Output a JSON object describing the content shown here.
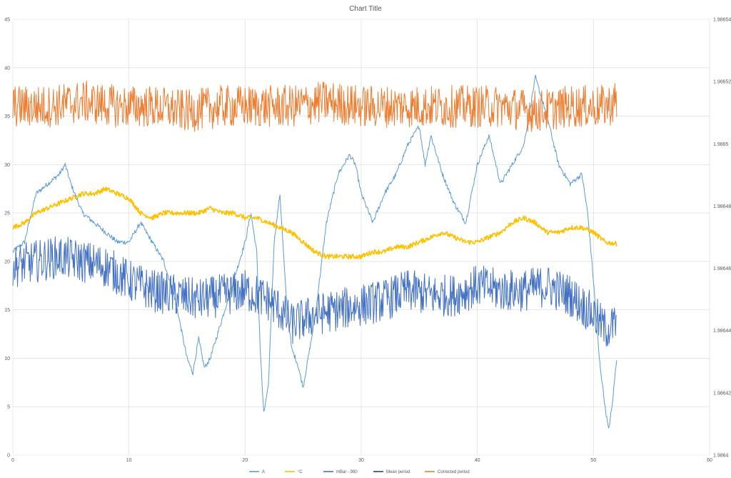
{
  "chart_data": {
    "type": "line",
    "title": "Chart Title",
    "xlabel": "",
    "ylabel": "",
    "y2label": "",
    "xlim": [
      0,
      60
    ],
    "ylim": [
      0,
      45
    ],
    "y2lim": [
      1.9864,
      1.98654
    ],
    "x_ticks": [
      0,
      10,
      20,
      30,
      40,
      50,
      60
    ],
    "y_ticks": [
      0,
      5,
      10,
      15,
      20,
      25,
      30,
      35,
      40,
      45
    ],
    "y2_tick_labels": [
      "1.9864",
      "1.98642",
      "1.98644",
      "1.98646",
      "1.98648",
      "1.9865",
      "1.98652",
      "1.98654"
    ],
    "y2_tick_values": [
      1.9864,
      1.98642,
      1.98644,
      1.98646,
      1.98648,
      1.9865,
      1.98652,
      1.98654
    ],
    "grid": true,
    "legend_position": "bottom",
    "series": [
      {
        "name": "A",
        "axis": "left",
        "color": "#5b9bd5",
        "noise": 0.25,
        "x": [
          0,
          1,
          2,
          3,
          4,
          4.5,
          5,
          6,
          7,
          8,
          9,
          10,
          11,
          12,
          13,
          14,
          15,
          15.5,
          16,
          16.5,
          17,
          18,
          19,
          20,
          20.5,
          21,
          21.3,
          21.6,
          22,
          22.5,
          23,
          23.5,
          24,
          24.5,
          25,
          26,
          27,
          28,
          29,
          29.5,
          30,
          31,
          32,
          33,
          34,
          35,
          35.5,
          36,
          37,
          38,
          39,
          40,
          41,
          42,
          43,
          44,
          45,
          46,
          47,
          48,
          49,
          49.5,
          50,
          50.5,
          51,
          51.3,
          51.6,
          52
        ],
        "y": [
          21,
          22,
          27,
          28,
          29,
          30,
          28,
          25,
          24,
          23,
          22,
          22,
          24,
          22,
          20,
          16,
          10,
          8.5,
          12,
          9,
          10,
          14,
          18,
          22,
          25,
          21,
          11,
          4.3,
          7,
          22,
          27,
          17,
          11,
          9.5,
          7,
          14,
          24,
          29,
          31,
          30,
          27,
          24,
          27,
          29,
          32,
          34,
          30,
          33,
          29,
          26,
          24,
          30,
          33,
          28,
          30,
          32,
          39,
          35,
          30,
          28,
          29,
          25,
          18,
          10,
          5,
          2.6,
          5,
          10
        ]
      },
      {
        "name": "°C",
        "axis": "left",
        "color": "#ffc000",
        "noise": 0.25,
        "x": [
          0,
          1,
          2,
          3,
          4,
          5,
          6,
          7,
          8,
          9,
          10,
          11,
          12,
          13,
          14,
          15,
          16,
          17,
          18,
          19,
          20,
          21,
          22,
          23,
          24,
          25,
          26,
          27,
          28,
          29,
          30,
          31,
          32,
          33,
          34,
          35,
          36,
          37,
          38,
          39,
          40,
          41,
          42,
          43,
          44,
          45,
          46,
          47,
          48,
          49,
          50,
          51,
          52
        ],
        "y": [
          23.5,
          24,
          25,
          25.5,
          26,
          26.5,
          27,
          27,
          27.5,
          27,
          26.5,
          25,
          24.5,
          25,
          25,
          25,
          25,
          25.5,
          25,
          25,
          24.5,
          24.5,
          24,
          23.5,
          23,
          22,
          21,
          20.5,
          20.5,
          20.5,
          20.5,
          21,
          21,
          21.5,
          21.5,
          22,
          22.5,
          23,
          22.5,
          22,
          22,
          22.5,
          23,
          24,
          24.5,
          24,
          23,
          23,
          23.5,
          23.5,
          23,
          22,
          21.8
        ]
      },
      {
        "name": "mBar - 980",
        "axis": "left",
        "color": "#4472c4",
        "noise": 2.2,
        "x": [
          0,
          2,
          4,
          6,
          8,
          10,
          12,
          14,
          16,
          18,
          20,
          21,
          22,
          23,
          24,
          26,
          28,
          30,
          32,
          34,
          36,
          38,
          40,
          42,
          44,
          46,
          48,
          50,
          51,
          52
        ],
        "y": [
          19.5,
          20,
          20.5,
          20,
          19.5,
          18,
          17,
          16.5,
          16,
          16.5,
          17,
          16.5,
          16,
          15,
          13.5,
          14.5,
          15,
          15.5,
          16,
          17,
          16.5,
          16.5,
          17.5,
          17,
          17,
          17.5,
          16.5,
          14.5,
          13,
          13.5
        ]
      },
      {
        "name": "Mean period",
        "axis": "left",
        "color": "#264478",
        "noise": 0,
        "x": [],
        "y": []
      },
      {
        "name": "Corrected period",
        "axis": "left",
        "color": "#ed7d31",
        "noise": 2.2,
        "x": [
          0,
          3,
          6,
          9,
          12,
          15,
          18,
          21,
          24,
          27,
          30,
          33,
          36,
          39,
          42,
          45,
          48,
          51,
          52
        ],
        "y": [
          36,
          36,
          36.5,
          36,
          36,
          35.5,
          36,
          36,
          36,
          36.5,
          36,
          36,
          36,
          36,
          36,
          35.5,
          36,
          36,
          36.5
        ]
      }
    ]
  }
}
